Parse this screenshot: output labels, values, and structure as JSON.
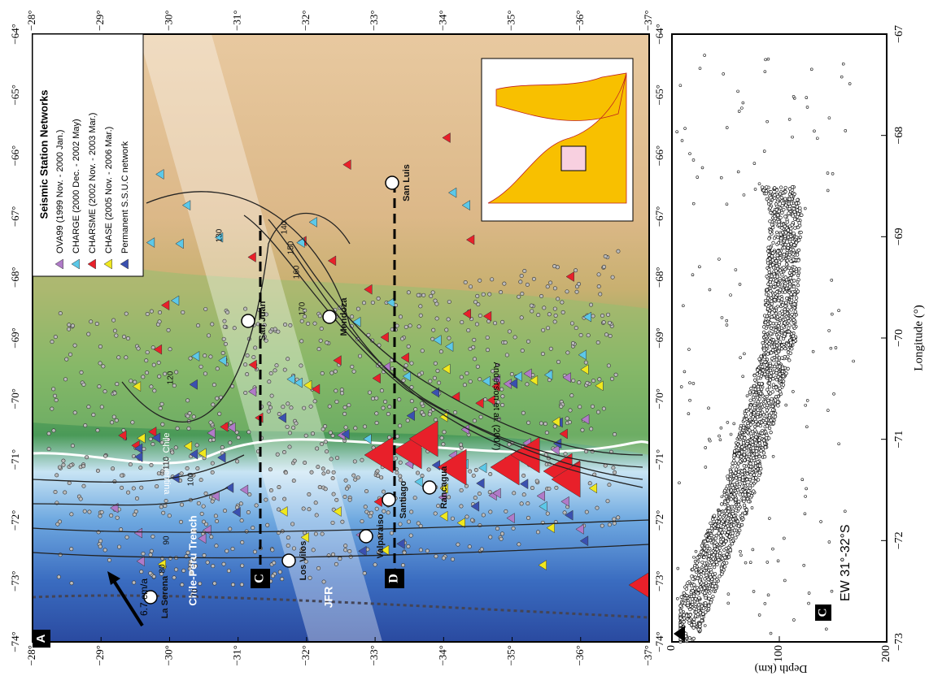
{
  "map": {
    "panel_label": "A",
    "lat_ticks": [
      "−28°",
      "−29°",
      "−30°",
      "−31°",
      "−32°",
      "−33°",
      "−34°",
      "−35°",
      "−36°",
      "−37°"
    ],
    "lon_ticks": [
      "−64°",
      "−65°",
      "−66°",
      "−67°",
      "−68°",
      "−69°",
      "−70°",
      "−71°",
      "−72°",
      "−73°",
      "−74°"
    ],
    "legend": {
      "title": "Seismic Station Networks",
      "items": [
        {
          "label": "OVA99 (1999 Nov. - 2000 Jan.)",
          "color": "#b07ac8"
        },
        {
          "label": "CHARGE (2000 Dec. - 2002 May)",
          "color": "#5cc8e8"
        },
        {
          "label": "CHARSME (2002 Nov. - 2003 Mar.)",
          "color": "#e8202a"
        },
        {
          "label": "CHASE (2005 Nov. - 2006 Mar.)",
          "color": "#f0e81e"
        },
        {
          "label": "Permanent S.S.U.C network",
          "color": "#3a50b0"
        }
      ]
    },
    "places": [
      "La Serena",
      "Los Vilos",
      "Valparaiso",
      "Santiago",
      "Rancagua",
      "San Juan",
      "Mendoza",
      "San Luis"
    ],
    "trench": "Chile-Peru Trench",
    "ridge": "JFR",
    "plate_rate": "6.7 cm/a",
    "countries": [
      "Chile",
      "Argentina"
    ],
    "contour_source": "Anderson et al. (2007)",
    "contours": [
      "70",
      "80",
      "90",
      "100",
      "110",
      "120",
      "130",
      "140",
      "150",
      "160",
      "170"
    ],
    "profiles": [
      "C",
      "D"
    ]
  },
  "section": {
    "panel_label": "C",
    "title": "EW 31°-32°S",
    "depth_label": "Depth (km)",
    "depth_ticks": [
      0,
      100,
      200
    ],
    "lon_label": "Longitude (°)",
    "lon_ticks": [
      "−67",
      "−68",
      "−69",
      "−70",
      "−71",
      "−72",
      "−73"
    ]
  }
}
